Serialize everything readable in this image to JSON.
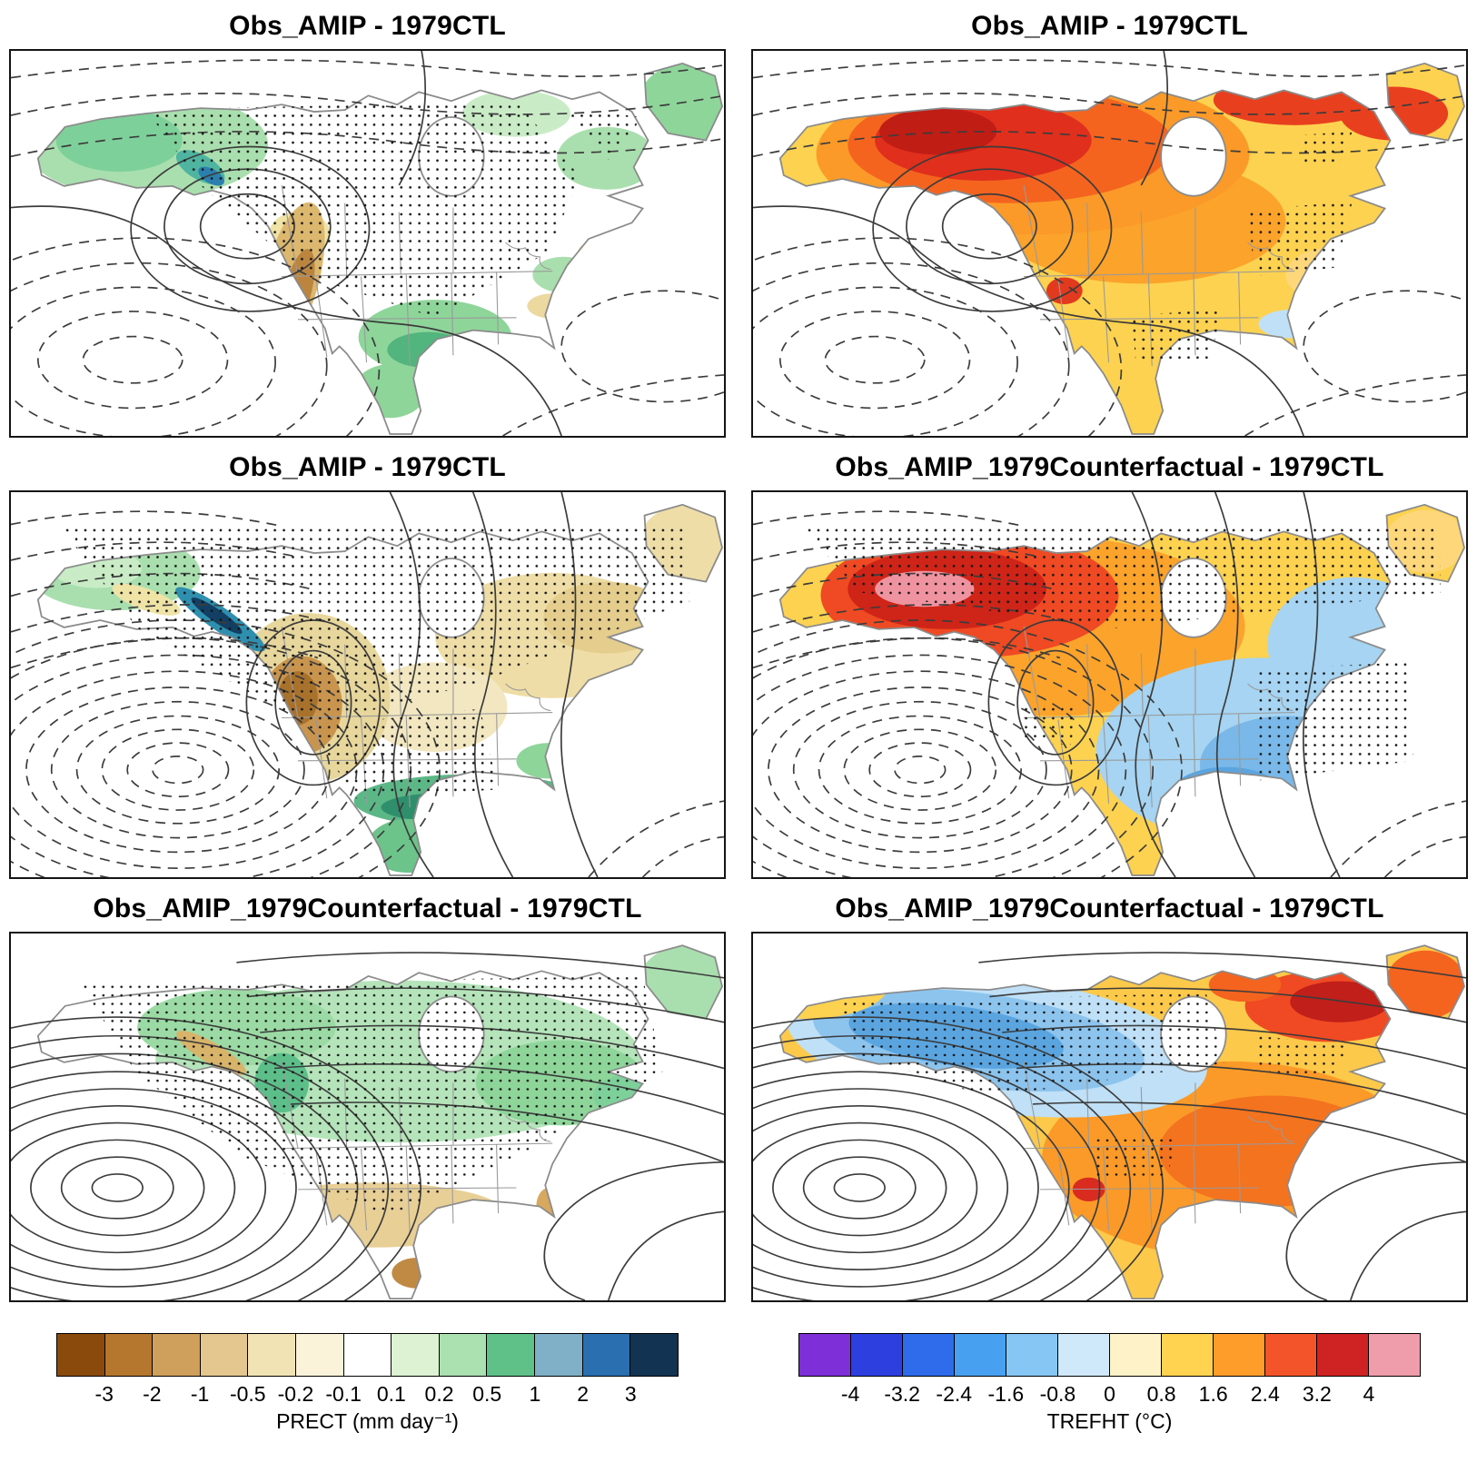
{
  "figure": {
    "description": "Six-panel climate anomaly map figure over North America",
    "rows": 3,
    "columns": 2
  },
  "panels": [
    {
      "title": "Obs_AMIP - 1979CTL"
    },
    {
      "title": "Obs_AMIP - 1979CTL"
    },
    {
      "title": "Obs_AMIP - 1979CTL"
    },
    {
      "title": "Obs_AMIP_1979Counterfactual - 1979CTL"
    },
    {
      "title": "Obs_AMIP_1979Counterfactual - 1979CTL"
    },
    {
      "title": "Obs_AMIP_1979Counterfactual - 1979CTL"
    }
  ],
  "colorbars": {
    "prect": {
      "label": "PRECT (mm day⁻¹)",
      "ticks": [
        "-3",
        "-2",
        "-1",
        "-0.5",
        "-0.2",
        "-0.1",
        "0.1",
        "0.2",
        "0.5",
        "1",
        "2",
        "3"
      ],
      "colors": [
        "#8a4a0b",
        "#b5762e",
        "#cfa05c",
        "#e3c78f",
        "#f1e3b4",
        "#faf3d9",
        "#ffffff",
        "#dcf2d2",
        "#abe0b0",
        "#5fc188",
        "#7fb0c8",
        "#2a6fb0",
        "#123351"
      ]
    },
    "trefht": {
      "label": "TREFHT (°C)",
      "ticks": [
        "-4",
        "-3.2",
        "-2.4",
        "-1.6",
        "-0.8",
        "0",
        "0.8",
        "1.6",
        "2.4",
        "3.2",
        "4"
      ],
      "colors": [
        "#7e2fd8",
        "#2e3fe0",
        "#2f6ceb",
        "#47a0f0",
        "#86c6f4",
        "#cfe8fa",
        "#fef3c8",
        "#ffd34f",
        "#ff9d2b",
        "#f4542a",
        "#cf2223",
        "#ef9cab"
      ]
    }
  }
}
